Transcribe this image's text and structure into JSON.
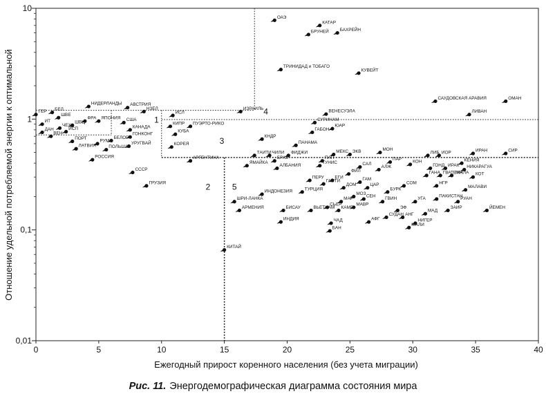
{
  "caption": {
    "label": "Рис. 11.",
    "text": "Энергодемографическая диаграмма состояния мира"
  },
  "chart_data": {
    "type": "scatter",
    "xlabel": "Ежегодный прирост коренного населения (без учета миграции)",
    "ylabel": "Отношение удельной потребляемой энергии к оптимальной",
    "xlim": [
      0,
      40
    ],
    "ylim": [
      0.01,
      10
    ],
    "yscale": "log",
    "xticks": [
      0,
      5,
      10,
      15,
      20,
      25,
      30,
      35,
      40
    ],
    "ytick_labels": [
      "10",
      "1",
      "0,1",
      "0,01"
    ],
    "ytick_values": [
      10,
      1,
      0.1,
      0.01
    ],
    "region_labels": [
      "1",
      "2",
      "3",
      "4",
      "5"
    ],
    "points": [
      {
        "label": "ОАЭ",
        "x": 19.0,
        "y": 7.8
      },
      {
        "label": "КАТАР",
        "x": 22.6,
        "y": 7.0
      },
      {
        "label": "БРУНЕЙ",
        "x": 21.7,
        "y": 5.8
      },
      {
        "label": "БАХРЕЙН",
        "x": 24.0,
        "y": 6.0
      },
      {
        "label": "ТРИНИДАД и ТОБАГО",
        "x": 19.5,
        "y": 2.8
      },
      {
        "label": "КУВЕЙТ",
        "x": 25.7,
        "y": 2.6
      },
      {
        "label": "САУДОВСКАЯ АРАВИЯ",
        "x": 31.8,
        "y": 1.45
      },
      {
        "label": "ОМАН",
        "x": 37.4,
        "y": 1.45
      },
      {
        "label": "ЛИВАН",
        "x": 34.5,
        "y": 1.1
      },
      {
        "label": "НИДЕРЛАНДЫ",
        "x": 4.2,
        "y": 1.3
      },
      {
        "label": "АВСТРИЯ",
        "x": 7.3,
        "y": 1.27
      },
      {
        "label": "НЗЕЛ",
        "x": 8.6,
        "y": 1.17
      },
      {
        "label": "ГЕР",
        "x": 0.0,
        "y": 1.1
      },
      {
        "label": "БЕЛ",
        "x": 1.3,
        "y": 1.15
      },
      {
        "label": "ШВЕ",
        "x": 1.8,
        "y": 1.03
      },
      {
        "label": "ФРА",
        "x": 3.9,
        "y": 0.96
      },
      {
        "label": "ЯПОНИЯ",
        "x": 5.0,
        "y": 0.96
      },
      {
        "label": "США",
        "x": 7.0,
        "y": 0.93
      },
      {
        "label": "ИТ",
        "x": 0.5,
        "y": 0.9
      },
      {
        "label": "ШВЦ",
        "x": 2.9,
        "y": 0.88
      },
      {
        "label": "ЧЕХ",
        "x": 1.9,
        "y": 0.83
      },
      {
        "label": "ИСП",
        "x": 2.4,
        "y": 0.77
      },
      {
        "label": "КАНАДА",
        "x": 7.5,
        "y": 0.8
      },
      {
        "label": "ДАН",
        "x": 0.5,
        "y": 0.76
      },
      {
        "label": "ВЕН",
        "x": 1.2,
        "y": 0.7
      },
      {
        "label": "ГОНКОНГ",
        "x": 7.5,
        "y": 0.69
      },
      {
        "label": "ПОРТ",
        "x": 2.9,
        "y": 0.63
      },
      {
        "label": "БЕЛОР",
        "x": 6.0,
        "y": 0.64
      },
      {
        "label": "РУМ",
        "x": 4.9,
        "y": 0.6
      },
      {
        "label": "УРУГВАЙ",
        "x": 7.4,
        "y": 0.57
      },
      {
        "label": "ЛАТВИЯ",
        "x": 3.2,
        "y": 0.54
      },
      {
        "label": "ПОЛЬША",
        "x": 5.6,
        "y": 0.53
      },
      {
        "label": "РОССИЯ",
        "x": 4.5,
        "y": 0.43
      },
      {
        "label": "СССР",
        "x": 7.7,
        "y": 0.33
      },
      {
        "label": "ГРУЗИЯ",
        "x": 8.8,
        "y": 0.25
      },
      {
        "label": "ИСЛ",
        "x": 10.9,
        "y": 1.08
      },
      {
        "label": "ИЗРАИЛЬ",
        "x": 16.3,
        "y": 1.17
      },
      {
        "label": "КИПР",
        "x": 10.7,
        "y": 0.86
      },
      {
        "label": "ПУЭРТО-РИКО",
        "x": 12.3,
        "y": 0.86
      },
      {
        "label": "КУБА",
        "x": 11.1,
        "y": 0.73
      },
      {
        "label": "КОРЕЯ",
        "x": 10.8,
        "y": 0.56
      },
      {
        "label": "АРГЕНТИНА",
        "x": 12.3,
        "y": 0.42
      },
      {
        "label": "ВЕНЕСУЭЛА",
        "x": 23.1,
        "y": 1.11
      },
      {
        "label": "СУРИНАМ",
        "x": 22.2,
        "y": 0.93
      },
      {
        "label": "ЮАР",
        "x": 23.6,
        "y": 0.82
      },
      {
        "label": "ГАБОН",
        "x": 22.0,
        "y": 0.76
      },
      {
        "label": "КНДР",
        "x": 18.0,
        "y": 0.66
      },
      {
        "label": "ПАНАМА",
        "x": 20.7,
        "y": 0.58
      },
      {
        "label": "ТАИТИ",
        "x": 17.4,
        "y": 0.47
      },
      {
        "label": "ЧИЛИ",
        "x": 18.6,
        "y": 0.47
      },
      {
        "label": "ФИДЖИ",
        "x": 20.1,
        "y": 0.47
      },
      {
        "label": "МЕКС",
        "x": 23.7,
        "y": 0.48
      },
      {
        "label": "ЭКВ",
        "x": 25.0,
        "y": 0.48
      },
      {
        "label": "МОН",
        "x": 27.4,
        "y": 0.5
      },
      {
        "label": "ЛИБ",
        "x": 31.2,
        "y": 0.47
      },
      {
        "label": "ИОР",
        "x": 32.1,
        "y": 0.47
      },
      {
        "label": "ИРАН",
        "x": 34.8,
        "y": 0.49
      },
      {
        "label": "СИР",
        "x": 37.4,
        "y": 0.49
      },
      {
        "label": "БРАЗ",
        "x": 19.0,
        "y": 0.42
      },
      {
        "label": "ПАП",
        "x": 22.8,
        "y": 0.42
      },
      {
        "label": "ЯМАЙКА",
        "x": 16.8,
        "y": 0.38
      },
      {
        "label": "АЛБАНИЯ",
        "x": 19.2,
        "y": 0.36
      },
      {
        "label": "ТУНИС",
        "x": 22.6,
        "y": 0.38
      },
      {
        "label": "ПАР",
        "x": 28.2,
        "y": 0.41
      },
      {
        "label": "КОН",
        "x": 29.8,
        "y": 0.39
      },
      {
        "label": "САЛ",
        "x": 25.8,
        "y": 0.37
      },
      {
        "label": "АЛЖ",
        "x": 27.3,
        "y": 0.35
      },
      {
        "label": "ГОНД",
        "x": 31.4,
        "y": 0.36
      },
      {
        "label": "КЕНИЯ",
        "x": 33.9,
        "y": 0.4
      },
      {
        "label": "ИРАК",
        "x": 32.6,
        "y": 0.36
      },
      {
        "label": "НИКАРАГУА",
        "x": 34.1,
        "y": 0.35
      },
      {
        "label": "ФИЛ",
        "x": 24.9,
        "y": 0.32
      },
      {
        "label": "ГАНА",
        "x": 31.1,
        "y": 0.31
      },
      {
        "label": "ГВАТЕМАЛА",
        "x": 32.2,
        "y": 0.31
      },
      {
        "label": "ТАН",
        "x": 33.1,
        "y": 0.31
      },
      {
        "label": "КОТ",
        "x": 34.8,
        "y": 0.3
      },
      {
        "label": "ПЕРУ",
        "x": 21.8,
        "y": 0.28
      },
      {
        "label": "ЕГИ",
        "x": 23.6,
        "y": 0.28
      },
      {
        "label": "ГАМ",
        "x": 25.8,
        "y": 0.27
      },
      {
        "label": "ГАИТИ",
        "x": 22.9,
        "y": 0.26
      },
      {
        "label": "ДОМ",
        "x": 24.5,
        "y": 0.24
      },
      {
        "label": "ЦАР",
        "x": 26.4,
        "y": 0.24
      },
      {
        "label": "СОМ",
        "x": 29.3,
        "y": 0.25
      },
      {
        "label": "НГР",
        "x": 31.9,
        "y": 0.25
      },
      {
        "label": "МАЛАВИ",
        "x": 34.2,
        "y": 0.23
      },
      {
        "label": "ИНДОНЕЗИЯ",
        "x": 18.0,
        "y": 0.21
      },
      {
        "label": "ТУРЦИЯ",
        "x": 21.2,
        "y": 0.22
      },
      {
        "label": "МОЗ",
        "x": 25.3,
        "y": 0.2
      },
      {
        "label": "БУРК",
        "x": 28.0,
        "y": 0.22
      },
      {
        "label": "СЕН",
        "x": 26.1,
        "y": 0.19
      },
      {
        "label": "ПАКИСТАН",
        "x": 31.9,
        "y": 0.19
      },
      {
        "label": "МАР",
        "x": 24.3,
        "y": 0.18
      },
      {
        "label": "УГА",
        "x": 30.2,
        "y": 0.18
      },
      {
        "label": "ГВИН",
        "x": 27.6,
        "y": 0.18
      },
      {
        "label": "РУАН",
        "x": 33.6,
        "y": 0.18
      },
      {
        "label": "ШРИ-ЛАНКА",
        "x": 15.8,
        "y": 0.18
      },
      {
        "label": "СЬЕР",
        "x": 23.2,
        "y": 0.16
      },
      {
        "label": "МАВР",
        "x": 25.3,
        "y": 0.16
      },
      {
        "label": "ЭФ",
        "x": 28.8,
        "y": 0.15
      },
      {
        "label": "ЗАИР",
        "x": 32.8,
        "y": 0.15
      },
      {
        "label": "АРМЕНИЯ",
        "x": 16.2,
        "y": 0.15
      },
      {
        "label": "БИСАУ",
        "x": 19.7,
        "y": 0.15
      },
      {
        "label": "ВЬЕТНАМ",
        "x": 21.9,
        "y": 0.15
      },
      {
        "label": "КАМБ",
        "x": 24.1,
        "y": 0.15
      },
      {
        "label": "МАД",
        "x": 31.0,
        "y": 0.14
      },
      {
        "label": "АНГ",
        "x": 29.2,
        "y": 0.13
      },
      {
        "label": "ЙЕМЕН",
        "x": 35.9,
        "y": 0.15
      },
      {
        "label": "СУДАН",
        "x": 27.9,
        "y": 0.13
      },
      {
        "label": "НИГЕР",
        "x": 30.2,
        "y": 0.115
      },
      {
        "label": "ИНДИЯ",
        "x": 19.5,
        "y": 0.118
      },
      {
        "label": "ЧАД",
        "x": 23.5,
        "y": 0.115
      },
      {
        "label": "АФГ",
        "x": 26.5,
        "y": 0.118
      },
      {
        "label": "МАЛИ",
        "x": 29.7,
        "y": 0.105
      },
      {
        "label": "БАН",
        "x": 23.4,
        "y": 0.098
      },
      {
        "label": "КИТАЙ",
        "x": 15.0,
        "y": 0.066
      }
    ]
  }
}
